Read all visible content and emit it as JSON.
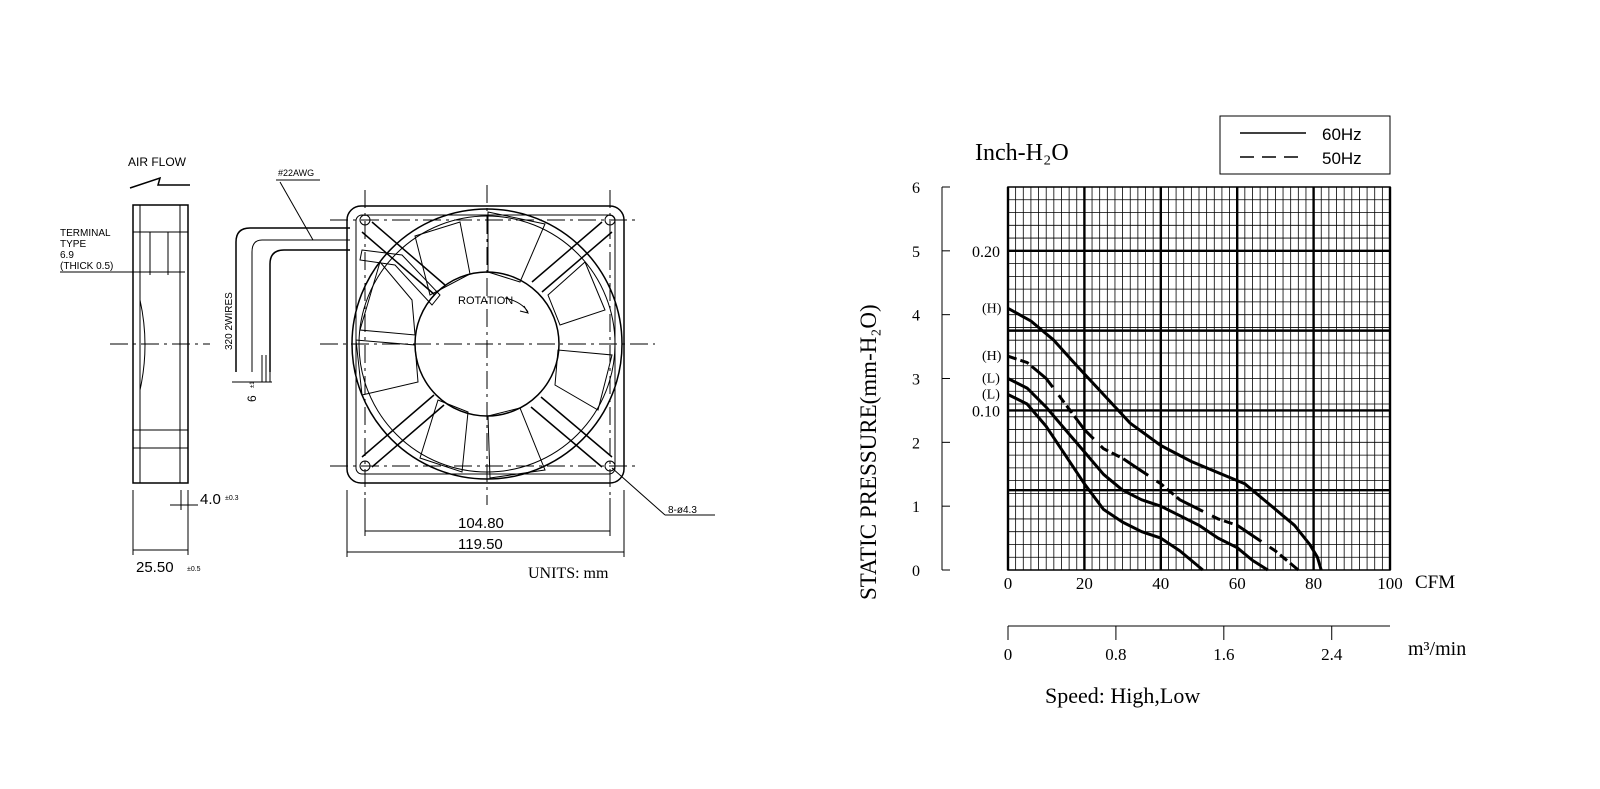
{
  "drawing": {
    "air_flow_label": "AIR FLOW",
    "terminal_lines": [
      "TERMINAL",
      "TYPE",
      "6.9",
      "(THICK 0.5)"
    ],
    "wire_gauge": "#22AWG",
    "wire_length_label": "320 2WIRES",
    "wire_strip_label": "6",
    "wire_strip_tol": "±1",
    "rotation_label": "ROTATION",
    "dim_inner": "104.80",
    "dim_outer": "119.50",
    "dim_depth": "25.50",
    "dim_depth_tol": "±0.5",
    "dim_flange": "4.0",
    "dim_flange_tol": "±0.3",
    "holes_label": "8-ø4.3",
    "units_label": "UNITS: mm"
  },
  "chart_data": {
    "type": "line",
    "title": "",
    "ylabel": "STATIC PRESSURE(mm-H₂O)",
    "left_unit": "Inch-H₂O",
    "xlabel": "CFM",
    "x2label": "m³/min",
    "footer": "Speed: High,Low",
    "xlim": [
      0,
      100
    ],
    "ylim": [
      0,
      6
    ],
    "x_ticks": [
      "0",
      "20",
      "40",
      "60",
      "80",
      "100"
    ],
    "y_ticks": [
      "0",
      "1",
      "2",
      "3",
      "4",
      "5",
      "6"
    ],
    "inch_ticks": [
      {
        "label": "0.20",
        "y": 5.0
      },
      {
        "label": "0.10",
        "y": 2.5
      }
    ],
    "x2_ticks": [
      "0",
      "0.8",
      "1.6",
      "2.4"
    ],
    "x2_max": 2.832,
    "legend": [
      {
        "label": "60Hz",
        "style": "solid"
      },
      {
        "label": "50Hz",
        "style": "dashed"
      }
    ],
    "legend_position": "top-right",
    "grid": true,
    "series": [
      {
        "label": "(H)",
        "style": "solid",
        "points": [
          [
            0,
            4.1
          ],
          [
            6,
            3.9
          ],
          [
            12,
            3.6
          ],
          [
            18,
            3.2
          ],
          [
            25,
            2.75
          ],
          [
            32,
            2.3
          ],
          [
            40,
            1.95
          ],
          [
            48,
            1.7
          ],
          [
            56,
            1.5
          ],
          [
            62,
            1.35
          ],
          [
            68,
            1.05
          ],
          [
            75,
            0.7
          ],
          [
            79,
            0.4
          ],
          [
            81,
            0.2
          ],
          [
            82,
            0.0
          ]
        ]
      },
      {
        "label": "(H)",
        "style": "dashed",
        "points": [
          [
            0,
            3.35
          ],
          [
            5,
            3.25
          ],
          [
            10,
            3.0
          ],
          [
            15,
            2.6
          ],
          [
            20,
            2.2
          ],
          [
            25,
            1.9
          ],
          [
            30,
            1.75
          ],
          [
            35,
            1.55
          ],
          [
            40,
            1.35
          ],
          [
            45,
            1.1
          ],
          [
            50,
            0.95
          ],
          [
            55,
            0.8
          ],
          [
            60,
            0.7
          ],
          [
            65,
            0.5
          ],
          [
            70,
            0.3
          ],
          [
            74,
            0.1
          ],
          [
            76,
            0.0
          ]
        ]
      },
      {
        "label": "(L)",
        "style": "solid",
        "points": [
          [
            0,
            3.0
          ],
          [
            5,
            2.85
          ],
          [
            10,
            2.55
          ],
          [
            15,
            2.2
          ],
          [
            20,
            1.85
          ],
          [
            25,
            1.5
          ],
          [
            30,
            1.25
          ],
          [
            35,
            1.1
          ],
          [
            40,
            1.0
          ],
          [
            45,
            0.85
          ],
          [
            50,
            0.7
          ],
          [
            55,
            0.5
          ],
          [
            60,
            0.35
          ],
          [
            64,
            0.15
          ],
          [
            68,
            0.0
          ]
        ]
      },
      {
        "label": "(L)",
        "style": "solid",
        "points": [
          [
            0,
            2.75
          ],
          [
            5,
            2.6
          ],
          [
            10,
            2.25
          ],
          [
            15,
            1.8
          ],
          [
            20,
            1.35
          ],
          [
            25,
            0.95
          ],
          [
            30,
            0.75
          ],
          [
            35,
            0.6
          ],
          [
            40,
            0.5
          ],
          [
            45,
            0.3
          ],
          [
            49,
            0.1
          ],
          [
            51,
            0.0
          ]
        ]
      }
    ]
  }
}
